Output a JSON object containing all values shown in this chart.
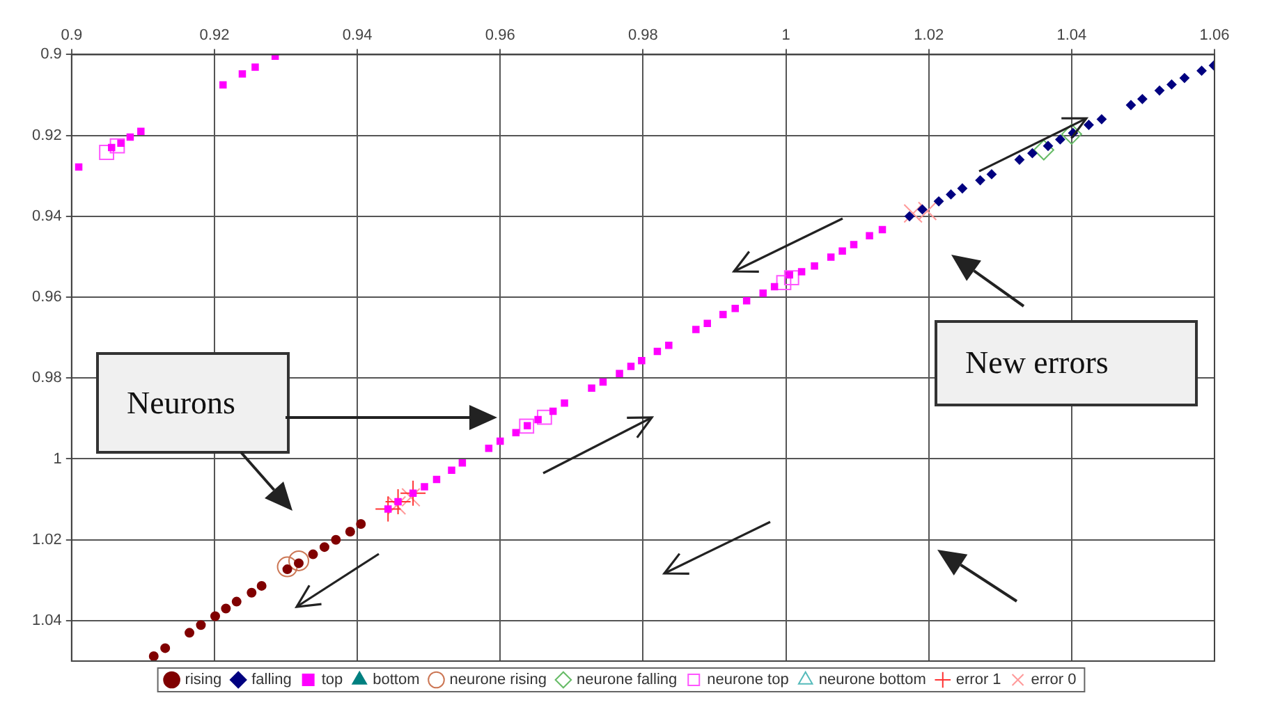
{
  "chart_data": {
    "type": "scatter",
    "xlim": [
      0.9,
      1.06
    ],
    "xticks": [
      0.9,
      0.92,
      0.94,
      0.96,
      0.98,
      1,
      1.02,
      1.04,
      1.06
    ],
    "ylim": [
      1.05,
      0.9
    ],
    "yticks": [
      0.9,
      0.92,
      0.94,
      0.96,
      0.98,
      1,
      1.02,
      1.04
    ],
    "grid": true,
    "legend": "bottom",
    "annotations": [
      "Neurons",
      "New errors"
    ],
    "series": [
      {
        "name": "rising",
        "color": "#800000",
        "marker": "circle",
        "x": [
          0.9115,
          0.9131,
          0.9165,
          0.9181,
          0.9201,
          0.9216,
          0.9231,
          0.9252,
          0.9266,
          0.9302,
          0.9318,
          0.9338,
          0.9354,
          0.937,
          0.939,
          0.9405
        ],
        "values": [
          1.0488,
          1.0468,
          1.043,
          1.0411,
          1.0389,
          1.037,
          1.0353,
          1.0331,
          1.0314,
          1.0273,
          1.0258,
          1.0236,
          1.0218,
          1.02,
          1.018,
          1.0161
        ]
      },
      {
        "name": "falling",
        "color": "#000080",
        "marker": "diamond",
        "x": [
          1.0173,
          1.0191,
          1.0214,
          1.0231,
          1.0247,
          1.0272,
          1.0288,
          1.0327,
          1.0345,
          1.0367,
          1.0384,
          1.0402,
          1.0424,
          1.0442,
          1.0483,
          1.0499,
          1.0523,
          1.054,
          1.0558,
          1.0582,
          1.0599
        ],
        "values": [
          0.94,
          0.9383,
          0.9363,
          0.9346,
          0.9331,
          0.9311,
          0.9296,
          0.926,
          0.9244,
          0.9226,
          0.921,
          0.9194,
          0.9174,
          0.916,
          0.9125,
          0.911,
          0.9089,
          0.9074,
          0.9058,
          0.904,
          0.9027
        ]
      },
      {
        "name": "top",
        "color": "#ff00ff",
        "marker": "square",
        "x": [
          0.901,
          0.9056,
          0.9069,
          0.9082,
          0.9097,
          0.9212,
          0.9239,
          0.9257,
          0.9285,
          0.9443,
          0.9457,
          0.9478,
          0.9494,
          0.9511,
          0.9532,
          0.9547,
          0.9584,
          0.96,
          0.9622,
          0.9638,
          0.9653,
          0.9674,
          0.969,
          0.9728,
          0.9744,
          0.9767,
          0.9783,
          0.9798,
          0.982,
          0.9836,
          0.9874,
          0.989,
          0.9912,
          0.9929,
          0.9945,
          0.9968,
          0.9984,
          1.0005,
          1.0022,
          1.004,
          1.0063,
          1.0079,
          1.0095,
          1.0117,
          1.0135
        ],
        "values": [
          0.9278,
          0.923,
          0.9219,
          0.9204,
          0.919,
          0.9075,
          0.9048,
          0.9031,
          0.9004,
          1.0124,
          1.0106,
          1.0085,
          1.0069,
          1.0051,
          1.0028,
          1.001,
          0.9974,
          0.9956,
          0.9935,
          0.9918,
          0.9903,
          0.9882,
          0.9862,
          0.9825,
          0.981,
          0.9789,
          0.9771,
          0.9757,
          0.9734,
          0.9719,
          0.968,
          0.9665,
          0.9643,
          0.9628,
          0.9609,
          0.959,
          0.9574,
          0.9545,
          0.9537,
          0.9523,
          0.9501,
          0.9486,
          0.947,
          0.9448,
          0.9433
        ]
      },
      {
        "name": "bottom",
        "color": "#008080",
        "marker": "triangle"
      },
      {
        "name": "neurone rising",
        "color": "#cc7755",
        "marker": "circle",
        "x": [
          0.9302,
          0.9318
        ],
        "values": [
          1.0267,
          1.0252
        ]
      },
      {
        "name": "neurone falling",
        "color": "#66bb66",
        "marker": "diamond",
        "x": [
          1.0361,
          1.04
        ],
        "values": [
          0.9236,
          0.9197
        ]
      },
      {
        "name": "neurone top",
        "color": "#ff55ff",
        "marker": "square",
        "x": [
          0.9049,
          0.9064,
          0.9637,
          0.9662,
          0.9997,
          1.0008
        ],
        "values": [
          0.9242,
          0.9226,
          0.9919,
          0.9897,
          0.9564,
          0.9552
        ]
      },
      {
        "name": "neurone bottom",
        "color": "#55bbbb",
        "marker": "triangle"
      },
      {
        "name": "error 1",
        "color": "#ff3333",
        "marker": "cross",
        "x": [
          0.9443,
          0.9457,
          0.9478
        ],
        "values": [
          1.0124,
          1.0106,
          1.0085
        ]
      },
      {
        "name": "error 0",
        "color": "#ff9999",
        "marker": "x",
        "x": [
          0.9455,
          0.9475,
          1.0178,
          1.0198
        ],
        "values": [
          1.0115,
          1.0095,
          0.9393,
          0.9387
        ]
      }
    ]
  }
}
